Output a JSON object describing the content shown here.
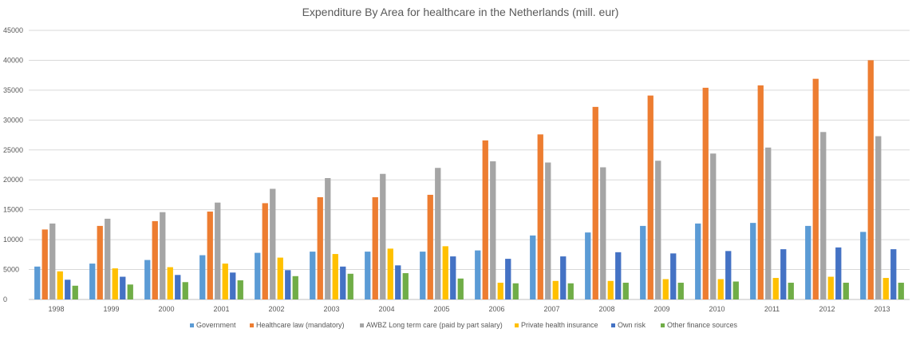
{
  "chart_data": {
    "type": "bar",
    "title": "Expenditure By Area for healthcare in the Netherlands (mill. eur)",
    "xlabel": "",
    "ylabel": "",
    "ylim": [
      0,
      45000
    ],
    "yticks": [
      0,
      5000,
      10000,
      15000,
      20000,
      25000,
      30000,
      35000,
      40000,
      45000
    ],
    "grid": true,
    "legend_position": "bottom",
    "categories": [
      "1998",
      "1999",
      "2000",
      "2001",
      "2002",
      "2003",
      "2004",
      "2005",
      "2006",
      "2007",
      "2008",
      "2009",
      "2010",
      "2011",
      "2012",
      "2013"
    ],
    "series": [
      {
        "name": "Government",
        "color": "#5b9bd5",
        "values": [
          5500,
          6000,
          6600,
          7400,
          7800,
          8000,
          8000,
          8000,
          8200,
          10700,
          11200,
          12300,
          12700,
          12800,
          12300,
          11300
        ]
      },
      {
        "name": "Healthcare law (mandatory)",
        "color": "#ed7d31",
        "values": [
          11700,
          12300,
          13100,
          14700,
          16100,
          17100,
          17100,
          17500,
          26600,
          27600,
          32200,
          34100,
          35400,
          35800,
          36900,
          40000
        ]
      },
      {
        "name": "AWBZ Long term care (paid by part salary)",
        "color": "#a5a5a5",
        "values": [
          12700,
          13500,
          14600,
          16200,
          18500,
          20300,
          21000,
          22000,
          23100,
          22900,
          22100,
          23200,
          24400,
          25400,
          28000,
          27300
        ]
      },
      {
        "name": "Private health insurance",
        "color": "#ffc000",
        "values": [
          4700,
          5200,
          5400,
          6000,
          7000,
          7600,
          8500,
          8900,
          2800,
          3100,
          3100,
          3400,
          3400,
          3600,
          3800,
          3600
        ]
      },
      {
        "name": "Own risk",
        "color": "#4472c4",
        "values": [
          3300,
          3800,
          4100,
          4500,
          4900,
          5500,
          5700,
          7200,
          6800,
          7200,
          7900,
          7700,
          8100,
          8400,
          8700,
          8400
        ]
      },
      {
        "name": "Other finance sources",
        "color": "#70ad47",
        "values": [
          2300,
          2500,
          2900,
          3200,
          3900,
          4300,
          4400,
          3500,
          2700,
          2700,
          2800,
          2800,
          3000,
          2800,
          2800,
          2800
        ]
      }
    ]
  }
}
